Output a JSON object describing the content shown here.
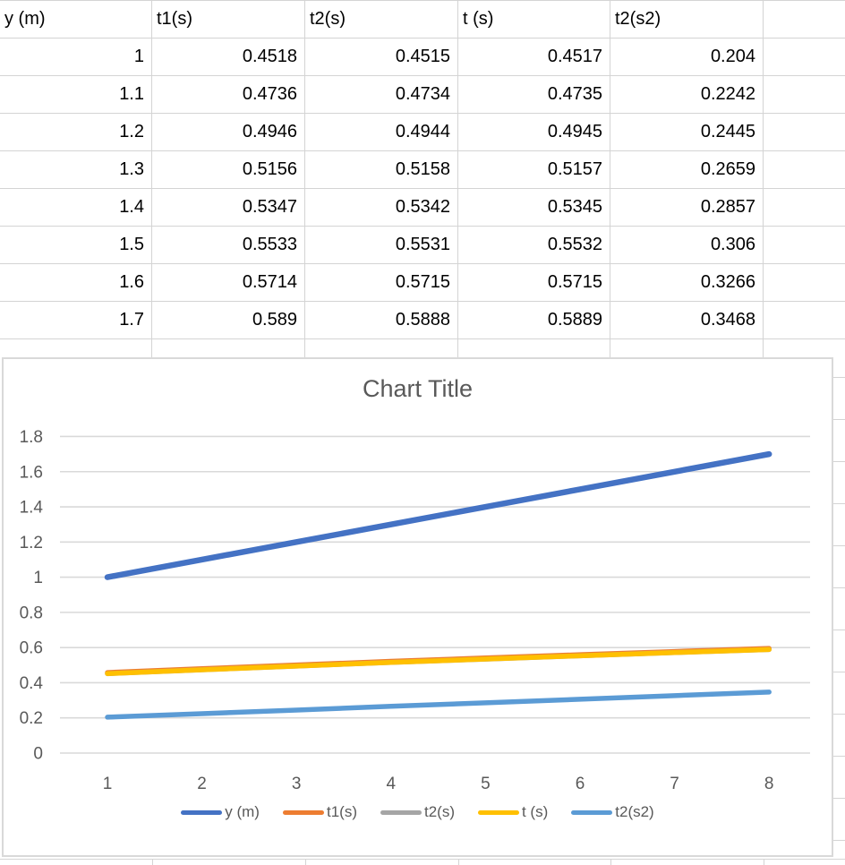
{
  "table": {
    "headers": [
      "y (m)",
      "t1(s)",
      "t2(s)",
      "t (s)",
      "t2(s2)",
      ""
    ],
    "rows": [
      [
        "1",
        "0.4518",
        "0.4515",
        "0.4517",
        "0.204"
      ],
      [
        "1.1",
        "0.4736",
        "0.4734",
        "0.4735",
        "0.2242"
      ],
      [
        "1.2",
        "0.4946",
        "0.4944",
        "0.4945",
        "0.2445"
      ],
      [
        "1.3",
        "0.5156",
        "0.5158",
        "0.5157",
        "0.2659"
      ],
      [
        "1.4",
        "0.5347",
        "0.5342",
        "0.5345",
        "0.2857"
      ],
      [
        "1.5",
        "0.5533",
        "0.5531",
        "0.5532",
        "0.306"
      ],
      [
        "1.6",
        "0.5714",
        "0.5715",
        "0.5715",
        "0.3266"
      ],
      [
        "1.7",
        "0.589",
        "0.5888",
        "0.5889",
        "0.3468"
      ]
    ]
  },
  "chart_data": {
    "type": "line",
    "title": "Chart Title",
    "title_color": "#595959",
    "categories": [
      1,
      2,
      3,
      4,
      5,
      6,
      7,
      8
    ],
    "x_tick_labels": [
      "1",
      "2",
      "3",
      "4",
      "5",
      "6",
      "7",
      "8"
    ],
    "series": [
      {
        "name": "y (m)",
        "color": "#4472C4",
        "values": [
          1,
          1.1,
          1.2,
          1.3,
          1.4,
          1.5,
          1.6,
          1.7
        ]
      },
      {
        "name": "t1(s)",
        "color": "#ED7D31",
        "values": [
          0.4518,
          0.4736,
          0.4946,
          0.5156,
          0.5347,
          0.5533,
          0.5714,
          0.589
        ]
      },
      {
        "name": "t2(s)",
        "color": "#A5A5A5",
        "values": [
          0.4515,
          0.4734,
          0.4944,
          0.5158,
          0.5342,
          0.5531,
          0.5715,
          0.5888
        ]
      },
      {
        "name": "t (s)",
        "color": "#FFC000",
        "values": [
          0.4517,
          0.4735,
          0.4945,
          0.5157,
          0.5345,
          0.5532,
          0.5715,
          0.5889
        ]
      },
      {
        "name": "t2(s2)",
        "color": "#5B9BD5",
        "values": [
          0.204,
          0.2242,
          0.2445,
          0.2659,
          0.2857,
          0.306,
          0.3266,
          0.3468
        ]
      }
    ],
    "ylim": [
      0,
      1.8
    ],
    "yticks": [
      "0",
      "0.2",
      "0.4",
      "0.6",
      "0.8",
      "1",
      "1.2",
      "1.4",
      "1.6",
      "1.8"
    ],
    "grid": "horizontal",
    "legend_position": "bottom",
    "gridline_color": "#d9d9d9",
    "axis_text_color": "#595959"
  }
}
